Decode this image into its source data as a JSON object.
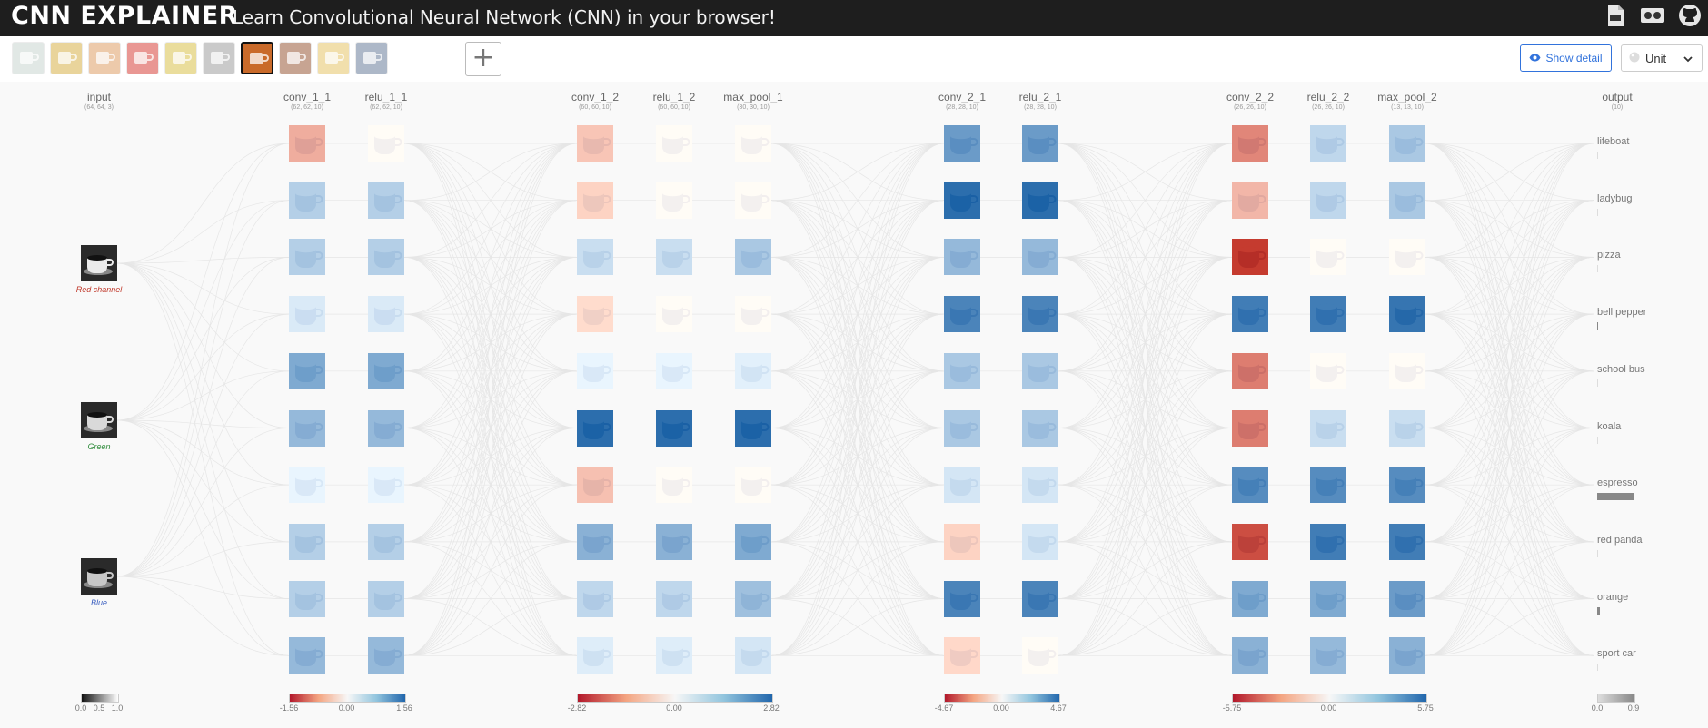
{
  "app": {
    "logo": "CNN EXPLAINER",
    "tagline": "Learn Convolutional Neural Network (CNN) in your browser!",
    "top_icons": [
      "pdf-icon",
      "video-icon",
      "github-icon"
    ]
  },
  "toolbar": {
    "thumbnails": [
      {
        "name": "thumbnail-1",
        "color": "#c9d6d1",
        "selected": false
      },
      {
        "name": "thumbnail-2",
        "color": "#d8b24a",
        "selected": false
      },
      {
        "name": "thumbnail-3",
        "color": "#e0a067",
        "selected": false
      },
      {
        "name": "thumbnail-4",
        "color": "#d8433b",
        "selected": false
      },
      {
        "name": "thumbnail-5",
        "color": "#d9c24c",
        "selected": false
      },
      {
        "name": "thumbnail-6",
        "color": "#a0a0a0",
        "selected": false
      },
      {
        "name": "thumbnail-espresso",
        "color": "#c96a2a",
        "selected": true
      },
      {
        "name": "thumbnail-8",
        "color": "#9a5a3a",
        "selected": false
      },
      {
        "name": "thumbnail-9",
        "color": "#e6c56a",
        "selected": false
      },
      {
        "name": "thumbnail-10",
        "color": "#6b7f9c",
        "selected": false
      }
    ],
    "add_label": "+",
    "show_detail_label": "Show detail",
    "unit_label": "Unit",
    "accent": "#3273dc"
  },
  "layers": [
    {
      "name": "input",
      "shape": "(64, 64, 3)"
    },
    {
      "name": "conv_1_1",
      "shape": "(62, 62, 10)"
    },
    {
      "name": "relu_1_1",
      "shape": "(62, 62, 10)"
    },
    {
      "name": "conv_1_2",
      "shape": "(60, 60, 10)"
    },
    {
      "name": "relu_1_2",
      "shape": "(60, 60, 10)"
    },
    {
      "name": "max_pool_1",
      "shape": "(30, 30, 10)"
    },
    {
      "name": "conv_2_1",
      "shape": "(28, 28, 10)"
    },
    {
      "name": "relu_2_1",
      "shape": "(28, 28, 10)"
    },
    {
      "name": "conv_2_2",
      "shape": "(26, 26, 10)"
    },
    {
      "name": "relu_2_2",
      "shape": "(26, 26, 10)"
    },
    {
      "name": "max_pool_2",
      "shape": "(13, 13, 10)"
    },
    {
      "name": "output",
      "shape": "(10)"
    }
  ],
  "input_channels": [
    {
      "label": "Red channel",
      "color": "#c0392b"
    },
    {
      "label": "Green",
      "color": "#2e8b3a"
    },
    {
      "label": "Blue",
      "color": "#3b5fc0"
    }
  ],
  "activations": {
    "conv_1_1": [
      0.35,
      0.3,
      0.3,
      0.12,
      0.55,
      0.45,
      0.05,
      0.3,
      0.3,
      0.45
    ],
    "relu_1_1": [
      0.0,
      0.3,
      0.3,
      0.12,
      0.55,
      0.45,
      0.05,
      0.3,
      0.3,
      0.45
    ],
    "conv_1_2": [
      0.22,
      0.15,
      0.2,
      0.1,
      0.05,
      0.95,
      0.25,
      0.5,
      0.25,
      0.1
    ],
    "relu_1_2": [
      0.0,
      0.0,
      0.2,
      0.0,
      0.05,
      0.95,
      0.0,
      0.5,
      0.25,
      0.1
    ],
    "max_pool_1": [
      0.0,
      0.0,
      0.35,
      0.0,
      0.08,
      0.95,
      0.0,
      0.55,
      0.4,
      0.15
    ],
    "conv_2_1": [
      0.65,
      0.95,
      0.45,
      0.8,
      0.35,
      0.35,
      0.15,
      0.15,
      0.8,
      0.12
    ],
    "relu_2_1": [
      0.65,
      0.95,
      0.45,
      0.8,
      0.35,
      0.35,
      0.15,
      0.15,
      0.8,
      0.0
    ],
    "conv_2_2": [
      0.55,
      0.3,
      0.95,
      0.85,
      0.6,
      0.6,
      0.75,
      0.85,
      0.55,
      0.5
    ],
    "relu_2_2": [
      0.25,
      0.25,
      0.0,
      0.85,
      0.0,
      0.2,
      0.75,
      0.85,
      0.55,
      0.45
    ],
    "max_pool_2": [
      0.35,
      0.35,
      0.0,
      0.9,
      0.0,
      0.2,
      0.75,
      0.85,
      0.65,
      0.5
    ]
  },
  "polarity": {
    "conv_1_1": [
      "red",
      "blue",
      "blue",
      "blue",
      "blue",
      "blue",
      "blue",
      "blue",
      "blue",
      "blue"
    ],
    "conv_1_2": [
      "red",
      "red",
      "blue",
      "red",
      "blue",
      "blue",
      "red",
      "blue",
      "blue",
      "blue"
    ],
    "conv_2_1": [
      "blue",
      "blue",
      "blue",
      "blue",
      "blue",
      "blue",
      "blue",
      "red",
      "blue",
      "red"
    ],
    "conv_2_2": [
      "red",
      "red",
      "red",
      "blue",
      "red",
      "red",
      "blue",
      "red",
      "blue",
      "blue"
    ]
  },
  "classes": [
    {
      "label": "lifeboat",
      "prob": 0.0
    },
    {
      "label": "ladybug",
      "prob": 0.0
    },
    {
      "label": "pizza",
      "prob": 0.0
    },
    {
      "label": "bell pepper",
      "prob": 0.02
    },
    {
      "label": "school bus",
      "prob": 0.0
    },
    {
      "label": "koala",
      "prob": 0.0
    },
    {
      "label": "espresso",
      "prob": 0.9
    },
    {
      "label": "red panda",
      "prob": 0.0
    },
    {
      "label": "orange",
      "prob": 0.07
    },
    {
      "label": "sport car",
      "prob": 0.0
    }
  ],
  "legends": [
    {
      "type": "gray",
      "ticks": [
        "0.0",
        "0.5",
        "1.0"
      ]
    },
    {
      "type": "diverging",
      "ticks": [
        "-1.56",
        "0.00",
        "1.56"
      ]
    },
    {
      "type": "diverging",
      "ticks": [
        "-2.82",
        "0.00",
        "2.82"
      ]
    },
    {
      "type": "diverging",
      "ticks": [
        "-4.67",
        "0.00",
        "4.67"
      ]
    },
    {
      "type": "diverging",
      "ticks": [
        "-5.75",
        "0.00",
        "5.75"
      ]
    },
    {
      "type": "gray",
      "ticks": [
        "0.0",
        "0.9"
      ]
    }
  ]
}
